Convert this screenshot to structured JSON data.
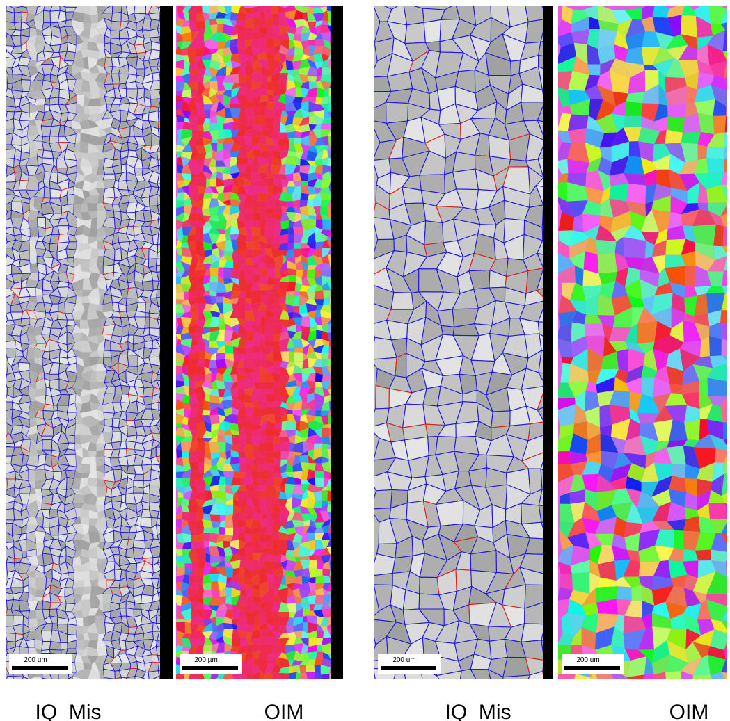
{
  "panels": [
    {
      "scale_bar": "200 um",
      "caption": "IQ  Mis"
    },
    {
      "scale_bar": "200 µm",
      "caption": "OIM"
    },
    {
      "scale_bar": "200 um",
      "caption": "IQ  Mis"
    },
    {
      "scale_bar": "200 um",
      "caption": "OIM"
    }
  ]
}
